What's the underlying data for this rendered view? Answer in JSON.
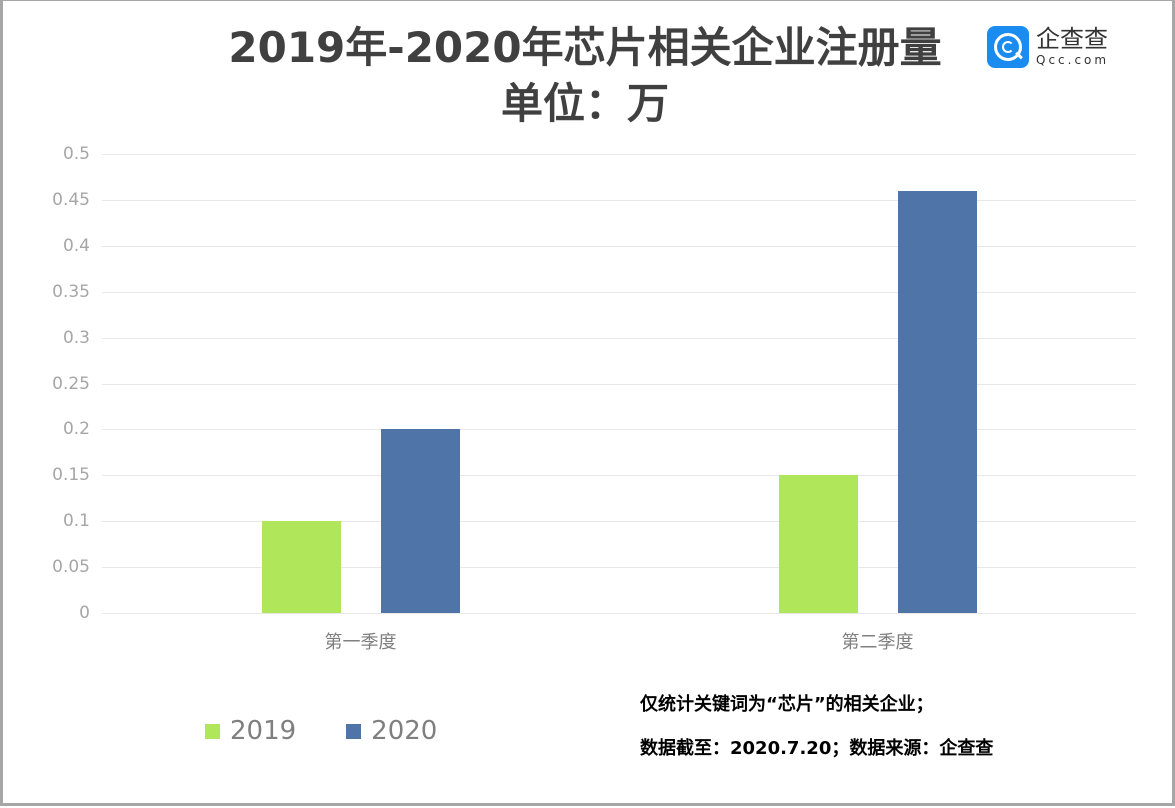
{
  "title": {
    "line1": "2019年-2020年芯片相关企业注册量",
    "line2": "单位：万"
  },
  "logo": {
    "icon": "qcc-logo-icon",
    "name_cn": "企查查",
    "name_en": "Qcc.com",
    "color": "#1a8cf0"
  },
  "axis": {
    "y_ticks": [
      "0.5",
      "0.45",
      "0.4",
      "0.35",
      "0.3",
      "0.25",
      "0.2",
      "0.15",
      "0.1",
      "0.05",
      "0"
    ],
    "x_labels": [
      "第一季度",
      "第二季度"
    ]
  },
  "legend": {
    "items": [
      {
        "label": "2019",
        "color": "#b0e75a"
      },
      {
        "label": "2020",
        "color": "#4f74a8"
      }
    ]
  },
  "notes": {
    "line1": "仅统计关键词为“芯片”的相关企业；",
    "line2": "数据截至：2020.7.20；数据来源：企查查"
  },
  "chart_data": {
    "type": "bar",
    "title": "2019年-2020年芯片相关企业注册量 单位：万",
    "categories": [
      "第一季度",
      "第二季度"
    ],
    "series": [
      {
        "name": "2019",
        "values": [
          0.1,
          0.15
        ],
        "color": "#b0e75a"
      },
      {
        "name": "2020",
        "values": [
          0.2,
          0.46
        ],
        "color": "#4f74a8"
      }
    ],
    "xlabel": "",
    "ylabel": "",
    "ylim": [
      0,
      0.5
    ],
    "y_tick_step": 0.05,
    "grid": true,
    "legend_position": "bottom-left",
    "annotations": [
      "仅统计关键词为“芯片”的相关企业；",
      "数据截至：2020.7.20；数据来源：企查查"
    ]
  }
}
